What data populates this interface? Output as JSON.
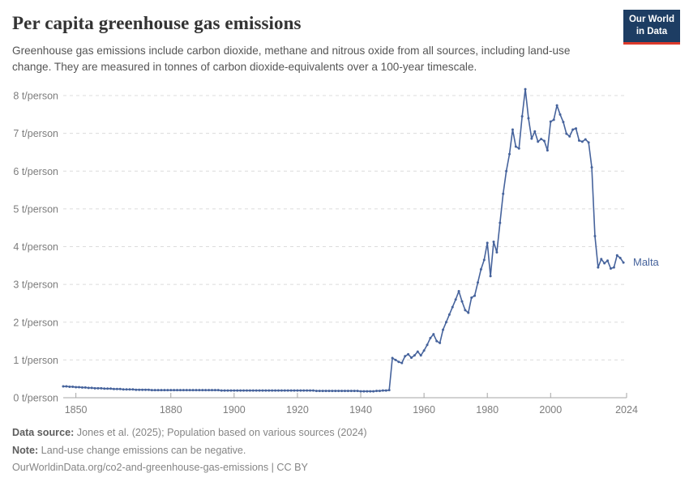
{
  "header": {
    "title": "Per capita greenhouse gas emissions",
    "subtitle": "Greenhouse gas emissions include carbon dioxide, methane and nitrous oxide from all sources, including land-use change. They are measured in tonnes of carbon dioxide-equivalents over a 100-year timescale.",
    "logo_line1": "Our World",
    "logo_line2": "in Data"
  },
  "chart_data": {
    "type": "line",
    "title": "Per capita greenhouse gas emissions",
    "ylabel": "t/person",
    "xlabel": "",
    "grid": "horizontal dashed",
    "legend_position": "end-of-line label",
    "xlim": [
      1846,
      2024
    ],
    "ylim": [
      0,
      8
    ],
    "x_ticks": [
      1850,
      1880,
      1900,
      1920,
      1940,
      1960,
      1980,
      2000,
      2024
    ],
    "y_ticks": [
      0,
      1,
      2,
      3,
      4,
      5,
      6,
      7,
      8
    ],
    "y_tick_labels": [
      "0 t/person",
      "1 t/person",
      "2 t/person",
      "3 t/person",
      "4 t/person",
      "5 t/person",
      "6 t/person",
      "7 t/person",
      "8 t/person"
    ],
    "end_label": "Malta",
    "series": [
      {
        "name": "Malta",
        "color": "#46639c",
        "x_start": 1846,
        "x_end": 2023,
        "x_step": 1,
        "values": [
          0.3,
          0.3,
          0.29,
          0.29,
          0.28,
          0.28,
          0.27,
          0.27,
          0.26,
          0.26,
          0.25,
          0.25,
          0.25,
          0.24,
          0.24,
          0.24,
          0.23,
          0.23,
          0.23,
          0.22,
          0.22,
          0.22,
          0.22,
          0.21,
          0.21,
          0.21,
          0.21,
          0.21,
          0.2,
          0.2,
          0.2,
          0.2,
          0.2,
          0.2,
          0.2,
          0.2,
          0.2,
          0.2,
          0.2,
          0.2,
          0.2,
          0.2,
          0.2,
          0.2,
          0.2,
          0.2,
          0.2,
          0.2,
          0.2,
          0.2,
          0.19,
          0.19,
          0.19,
          0.19,
          0.19,
          0.19,
          0.19,
          0.19,
          0.19,
          0.19,
          0.19,
          0.19,
          0.19,
          0.19,
          0.19,
          0.19,
          0.19,
          0.19,
          0.19,
          0.19,
          0.19,
          0.19,
          0.19,
          0.19,
          0.19,
          0.19,
          0.19,
          0.19,
          0.19,
          0.19,
          0.18,
          0.18,
          0.18,
          0.18,
          0.18,
          0.18,
          0.18,
          0.18,
          0.18,
          0.18,
          0.18,
          0.18,
          0.18,
          0.18,
          0.17,
          0.17,
          0.17,
          0.17,
          0.17,
          0.18,
          0.18,
          0.19,
          0.19,
          0.2,
          1.05,
          1.0,
          0.95,
          0.92,
          1.1,
          1.15,
          1.06,
          1.12,
          1.22,
          1.12,
          1.25,
          1.4,
          1.58,
          1.68,
          1.5,
          1.45,
          1.8,
          2.0,
          2.2,
          2.4,
          2.6,
          2.82,
          2.55,
          2.32,
          2.25,
          2.65,
          2.7,
          3.05,
          3.4,
          3.65,
          4.1,
          3.22,
          4.13,
          3.85,
          4.63,
          5.4,
          6.0,
          6.45,
          7.1,
          6.65,
          6.6,
          7.45,
          8.17,
          7.4,
          6.86,
          7.05,
          6.78,
          6.85,
          6.8,
          6.55,
          7.31,
          7.36,
          7.74,
          7.5,
          7.3,
          6.99,
          6.92,
          7.1,
          7.13,
          6.81,
          6.78,
          6.84,
          6.76,
          6.1,
          4.28,
          3.45,
          3.67,
          3.56,
          3.63,
          3.42,
          3.45,
          3.77,
          3.7,
          3.58
        ]
      }
    ]
  },
  "footer": {
    "data_source_label": "Data source:",
    "data_source": " Jones et al. (2025); Population based on various sources (2024)",
    "note_label": "Note:",
    "note": " Land-use change emissions can be negative.",
    "url_line": "OurWorldinData.org/co2-and-greenhouse-gas-emissions | CC BY"
  },
  "colors": {
    "line": "#46639c",
    "logo_navy": "#1d3d63",
    "logo_red": "#dc3a2b",
    "gridline": "#dcdcdc",
    "axis": "#a5a5a5",
    "tick_text": "#7d7d7d"
  }
}
